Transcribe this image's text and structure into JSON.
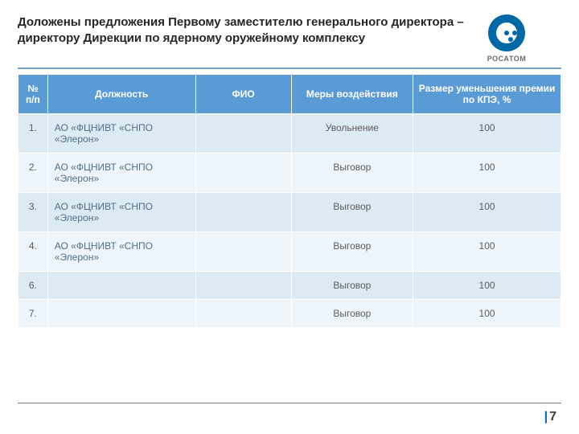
{
  "header": {
    "title": "Доложены предложения Первому заместителю генерального директора – директору Дирекции по ядерному оружейному комплексу",
    "logo_label": "РОСАТОМ"
  },
  "table": {
    "columns": {
      "num": "№ п/п",
      "position": "Должность",
      "fio": "ФИО",
      "measures": "Меры воздействия",
      "penalty": "Размер уменьшения премии по КПЭ, %"
    },
    "col_widths": [
      "34px",
      "170px",
      "110px",
      "140px",
      "170px"
    ],
    "header_bg": "#5b9bd5",
    "row_odd_bg": "#dceaf3",
    "row_even_bg": "#eef5fa",
    "rows": [
      {
        "num": "1.",
        "position": "АО «ФЦНИВТ «СНПО «Элерон»",
        "fio": "",
        "measures": "Увольнение",
        "penalty": "100"
      },
      {
        "num": "2.",
        "position": "АО «ФЦНИВТ «СНПО «Элерон»",
        "fio": "",
        "measures": "Выговор",
        "penalty": "100"
      },
      {
        "num": "3.",
        "position": "АО «ФЦНИВТ «СНПО «Элерон»",
        "fio": "",
        "measures": "Выговор",
        "penalty": "100"
      },
      {
        "num": "4.",
        "position": "АО «ФЦНИВТ «СНПО «Элерон»",
        "fio": "",
        "measures": "Выговор",
        "penalty": "100"
      },
      {
        "num": "6.",
        "position": "",
        "fio": "",
        "measures": "Выговор",
        "penalty": "100"
      },
      {
        "num": "7.",
        "position": "",
        "fio": "",
        "measures": "Выговор",
        "penalty": "100"
      }
    ]
  },
  "footer": {
    "page_number": "7"
  }
}
